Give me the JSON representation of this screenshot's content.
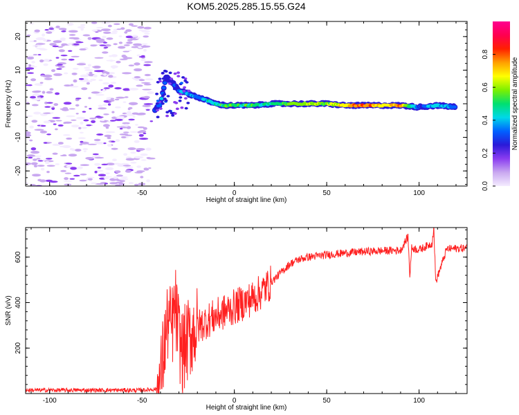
{
  "chart_data": [
    {
      "type": "heatmap",
      "title": "KOM5.2025.285.15.55.G24",
      "xlabel": "Height of straight line (km)",
      "ylabel": "Frequency (Hz)",
      "xlim": [
        -113,
        126
      ],
      "ylim": [
        -24.5,
        24.5
      ],
      "xticks": [
        -100,
        -50,
        0,
        50,
        100
      ],
      "yticks": [
        -20,
        -10,
        0,
        10,
        20
      ],
      "xtick_labels": [
        "-100",
        "-50",
        "0",
        "50",
        "100"
      ],
      "ytick_labels": [
        "-20",
        "-10",
        "0",
        "10",
        "20"
      ],
      "colorbar": {
        "label": "Normalized spectral amplitude",
        "range": [
          0,
          1
        ],
        "ticks": [
          0.0,
          0.2,
          0.4,
          0.6,
          0.8
        ],
        "tick_labels": [
          "0.0",
          "0.2",
          "0.4",
          "0.6",
          "0.8"
        ],
        "colors": [
          "#f4ecff",
          "#c9a8f0",
          "#8a3cf0",
          "#2a1ad8",
          "#0060ff",
          "#00d8e8",
          "#00e070",
          "#7cf000",
          "#ffff00",
          "#ffa000",
          "#ff2000",
          "#ff0050",
          "#ff0090"
        ]
      },
      "signal_track": [
        {
          "x": -43,
          "y": -2,
          "amp": 0.35
        },
        {
          "x": -40,
          "y": 0,
          "amp": 0.4
        },
        {
          "x": -37,
          "y": 8,
          "amp": 0.3
        },
        {
          "x": -33,
          "y": 6,
          "amp": 0.3
        },
        {
          "x": -30,
          "y": 4,
          "amp": 0.35
        },
        {
          "x": -25,
          "y": 3,
          "amp": 0.45
        },
        {
          "x": -20,
          "y": 2,
          "amp": 0.4
        },
        {
          "x": -15,
          "y": 1,
          "amp": 0.45
        },
        {
          "x": -10,
          "y": 0,
          "amp": 0.5
        },
        {
          "x": -5,
          "y": -0.5,
          "amp": 0.55
        },
        {
          "x": 0,
          "y": -0.5,
          "amp": 0.55
        },
        {
          "x": 10,
          "y": -0.5,
          "amp": 0.55
        },
        {
          "x": 20,
          "y": 0,
          "amp": 0.5
        },
        {
          "x": 30,
          "y": 0,
          "amp": 0.6
        },
        {
          "x": 40,
          "y": 0,
          "amp": 0.65
        },
        {
          "x": 50,
          "y": 0,
          "amp": 0.6
        },
        {
          "x": 60,
          "y": -0.5,
          "amp": 0.75
        },
        {
          "x": 70,
          "y": -0.5,
          "amp": 0.85
        },
        {
          "x": 80,
          "y": -0.5,
          "amp": 0.7
        },
        {
          "x": 90,
          "y": -0.5,
          "amp": 0.8
        },
        {
          "x": 100,
          "y": -1,
          "amp": 0.35
        },
        {
          "x": 110,
          "y": -0.5,
          "amp": 0.45
        },
        {
          "x": 120,
          "y": -1,
          "amp": 0.4
        }
      ]
    },
    {
      "type": "line",
      "title": "",
      "xlabel": "Height of straight line (km)",
      "ylabel": "SNR (v/v)",
      "xlim": [
        -113,
        126
      ],
      "ylim": [
        0,
        730
      ],
      "xticks": [
        -100,
        -50,
        0,
        50,
        100
      ],
      "yticks": [
        200,
        400,
        600
      ],
      "xtick_labels": [
        "-100",
        "-50",
        "0",
        "50",
        "100"
      ],
      "ytick_labels": [
        "200",
        "400",
        "600"
      ],
      "series": [
        {
          "name": "SNR",
          "color": "#ff2020",
          "x": [
            -113,
            -100,
            -80,
            -60,
            -50,
            -42,
            -40,
            -38,
            -36,
            -34,
            -32,
            -30,
            -28,
            -26,
            -24,
            -22,
            -20,
            -15,
            -10,
            -5,
            0,
            5,
            10,
            15,
            20,
            25,
            30,
            35,
            40,
            50,
            60,
            70,
            80,
            90,
            94,
            95,
            96,
            100,
            107,
            108,
            109,
            115,
            126
          ],
          "y": [
            15,
            15,
            15,
            15,
            15,
            20,
            60,
            200,
            320,
            280,
            380,
            250,
            180,
            220,
            250,
            280,
            290,
            320,
            340,
            360,
            380,
            400,
            420,
            450,
            490,
            530,
            570,
            590,
            600,
            610,
            618,
            624,
            628,
            630,
            690,
            520,
            640,
            632,
            660,
            730,
            490,
            636,
            640
          ]
        }
      ]
    }
  ]
}
